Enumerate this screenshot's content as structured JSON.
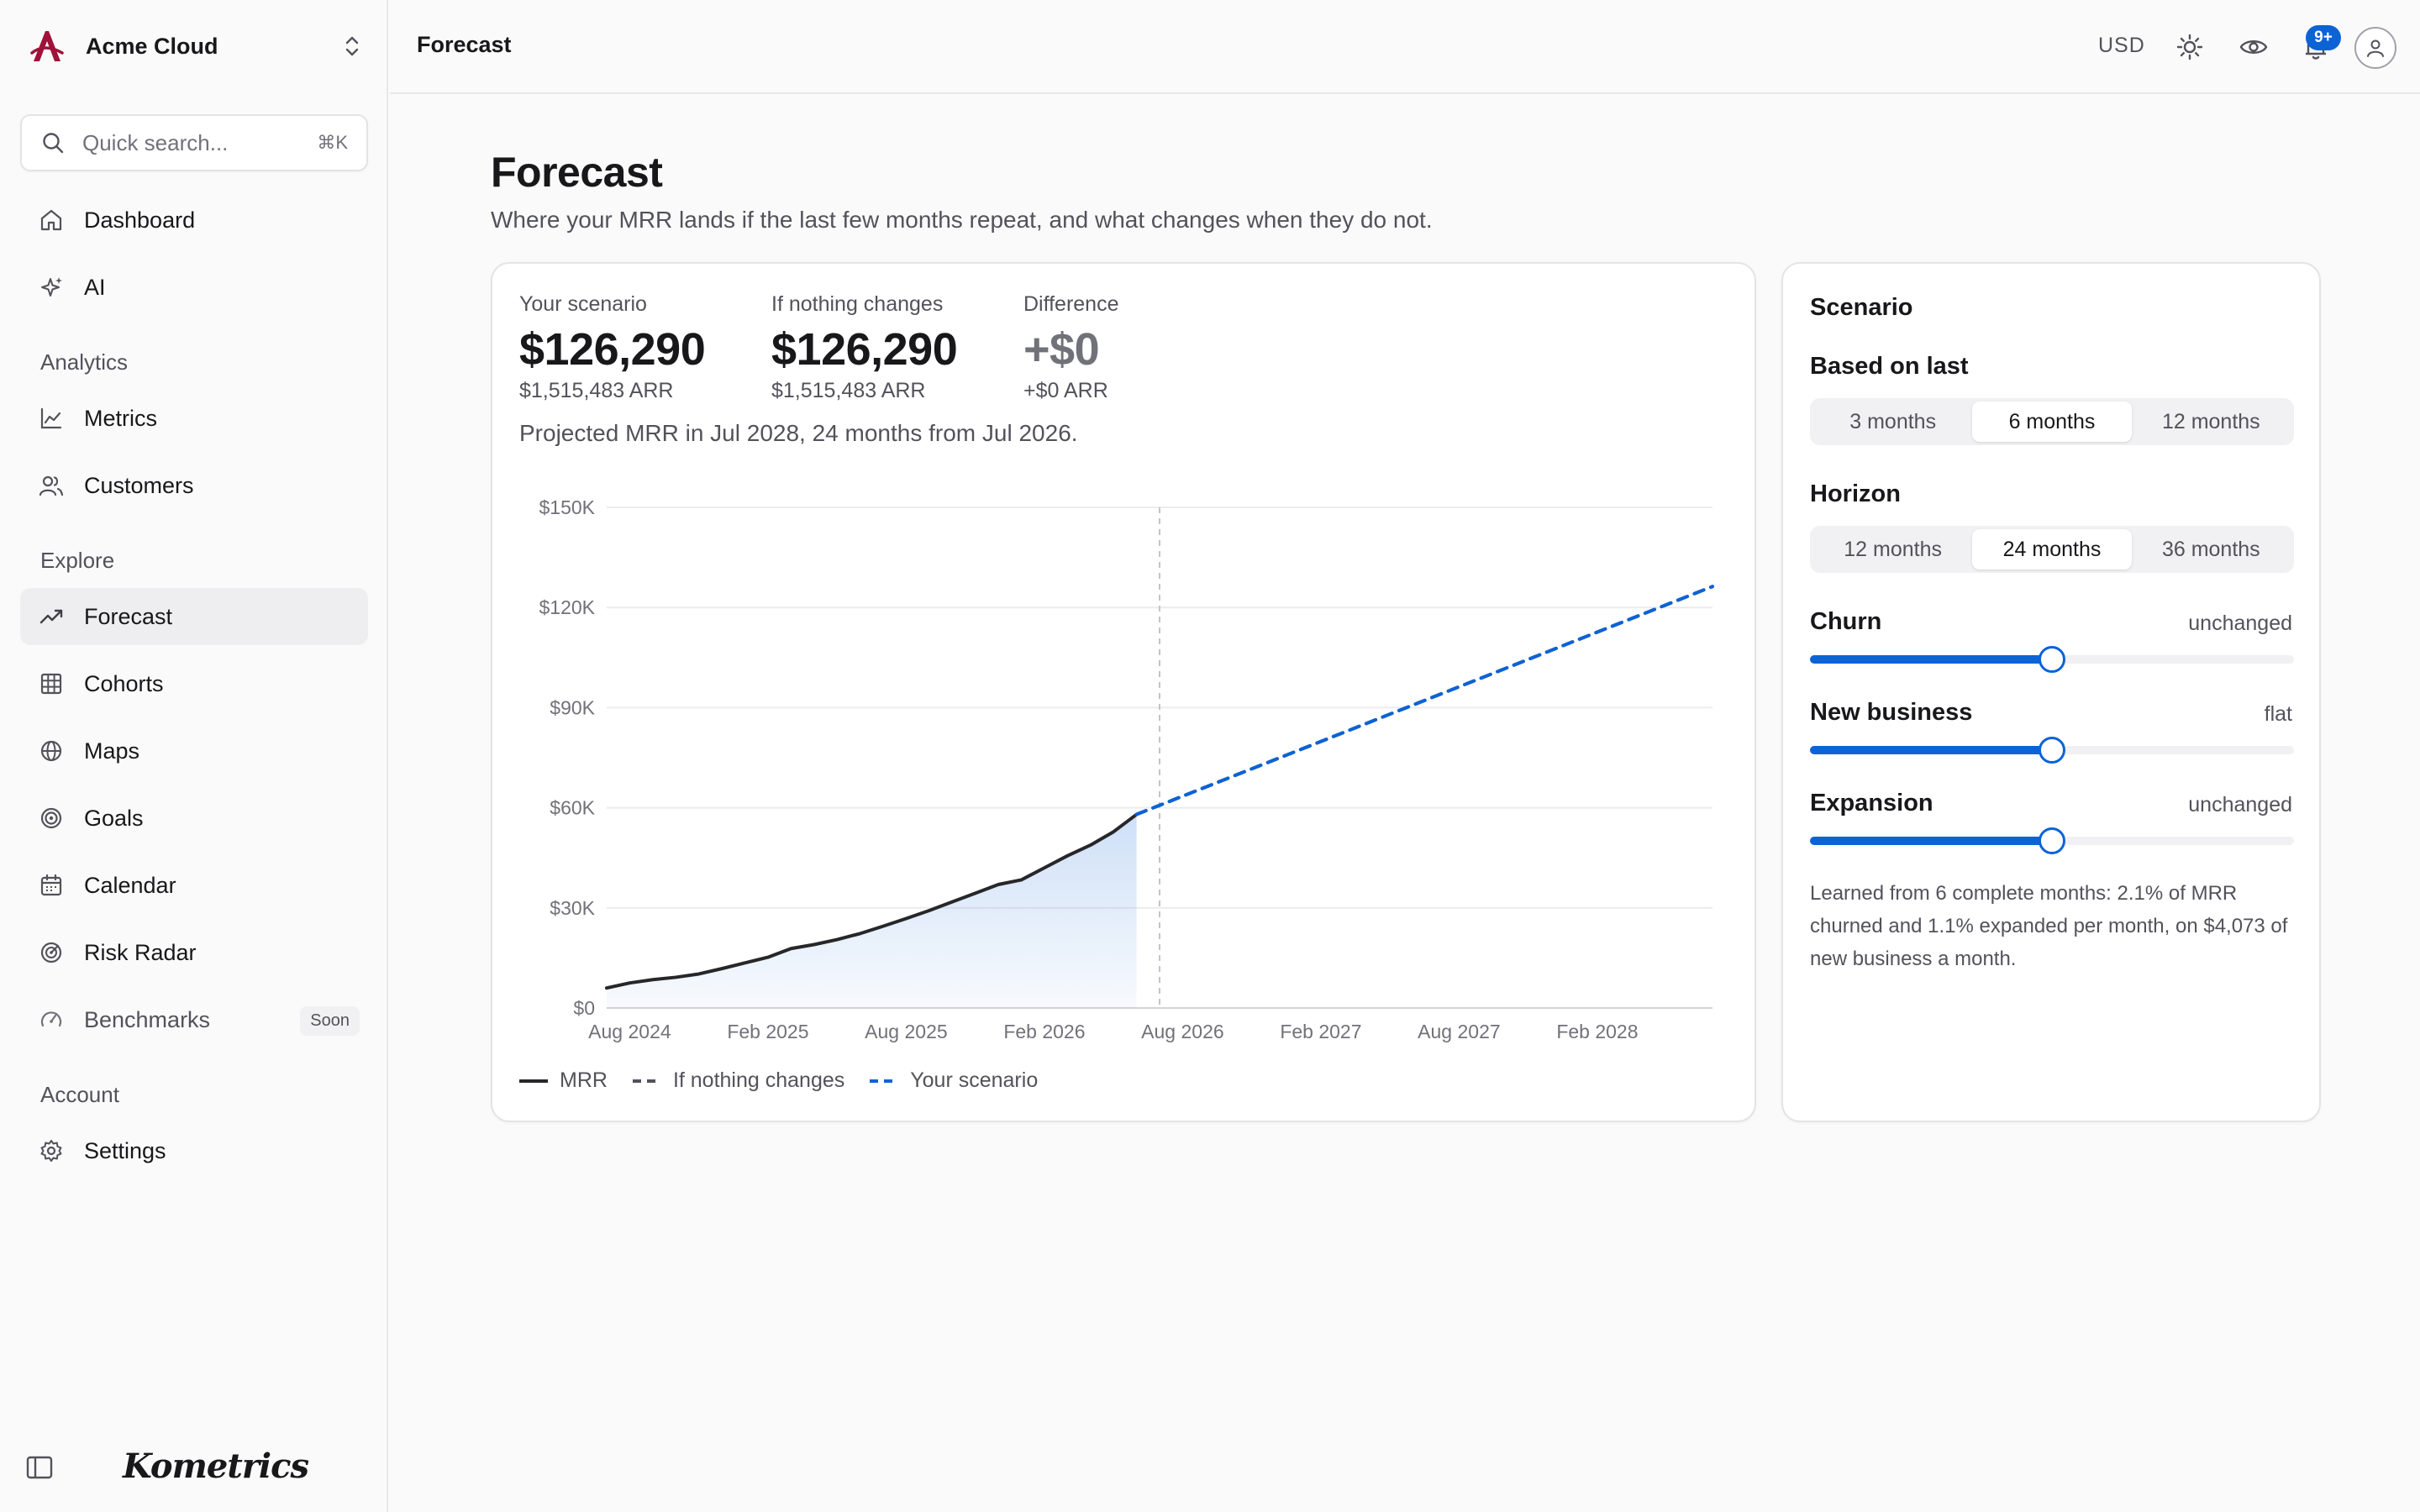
{
  "app": {
    "workspace_name": "Acme Cloud",
    "wordmark": "Kometrics"
  },
  "search": {
    "placeholder": "Quick search...",
    "shortcut": "⌘K"
  },
  "sidebar": {
    "top_items": [
      {
        "label": "Dashboard",
        "icon": "home-icon"
      },
      {
        "label": "AI",
        "icon": "sparkles-icon"
      }
    ],
    "sections": [
      {
        "title": "Analytics",
        "items": [
          {
            "label": "Metrics",
            "icon": "line-chart-icon"
          },
          {
            "label": "Customers",
            "icon": "users-icon"
          }
        ]
      },
      {
        "title": "Explore",
        "items": [
          {
            "label": "Forecast",
            "icon": "trending-up-icon",
            "active": true
          },
          {
            "label": "Cohorts",
            "icon": "grid-icon"
          },
          {
            "label": "Maps",
            "icon": "globe-icon"
          },
          {
            "label": "Goals",
            "icon": "target-icon"
          },
          {
            "label": "Calendar",
            "icon": "calendar-icon"
          },
          {
            "label": "Risk Radar",
            "icon": "radar-icon"
          },
          {
            "label": "Benchmarks",
            "icon": "gauge-icon",
            "badge": "Soon"
          }
        ]
      },
      {
        "title": "Account",
        "items": [
          {
            "label": "Settings",
            "icon": "gear-icon"
          }
        ]
      }
    ]
  },
  "topbar": {
    "title": "Forecast",
    "currency": "USD",
    "notifications_badge": "9+"
  },
  "page": {
    "title": "Forecast",
    "subtitle": "Where your MRR lands if the last few months repeat, and what changes when they do not."
  },
  "kpis": [
    {
      "label": "Your scenario",
      "value": "$126,290",
      "sub": "$1,515,483 ARR"
    },
    {
      "label": "If nothing changes",
      "value": "$126,290",
      "sub": "$1,515,483 ARR"
    },
    {
      "label": "Difference",
      "value": "+$0",
      "sub": "+$0 ARR"
    }
  ],
  "projection_note": "Projected MRR in Jul 2028, 24 months from Jul 2026.",
  "chart_data": {
    "type": "line",
    "y_ticks": [
      "$0",
      "$30K",
      "$60K",
      "$90K",
      "$120K",
      "$150K"
    ],
    "ylim": [
      0,
      150000
    ],
    "x_ticks": [
      "Aug 2024",
      "Feb 2025",
      "Aug 2025",
      "Feb 2026",
      "Aug 2026",
      "Feb 2027",
      "Aug 2027",
      "Feb 2028"
    ],
    "x_start": "2024-07",
    "x_end": "2028-07",
    "forecast_start": "2026-07",
    "grid": true,
    "legend": "bottom-left",
    "series": [
      {
        "name": "MRR",
        "style": "solid",
        "color": "#27272a",
        "points": [
          [
            "2024-07",
            6000
          ],
          [
            "2024-08",
            7500
          ],
          [
            "2024-09",
            8500
          ],
          [
            "2024-10",
            9200
          ],
          [
            "2024-11",
            10200
          ],
          [
            "2024-12",
            11800
          ],
          [
            "2025-01",
            13500
          ],
          [
            "2025-02",
            15200
          ],
          [
            "2025-03",
            17800
          ],
          [
            "2025-04",
            19000
          ],
          [
            "2025-05",
            20500
          ],
          [
            "2025-06",
            22300
          ],
          [
            "2025-07",
            24500
          ],
          [
            "2025-08",
            26800
          ],
          [
            "2025-09",
            29200
          ],
          [
            "2025-10",
            31800
          ],
          [
            "2025-11",
            34400
          ],
          [
            "2025-12",
            37000
          ],
          [
            "2026-01",
            38400
          ],
          [
            "2026-02",
            42000
          ],
          [
            "2026-03",
            45600
          ],
          [
            "2026-04",
            48800
          ],
          [
            "2026-05",
            52800
          ],
          [
            "2026-06",
            58000
          ]
        ]
      },
      {
        "name": "If nothing changes",
        "style": "dashed",
        "color": "#52525b",
        "points": [
          [
            "2026-06",
            58000
          ],
          [
            "2028-07",
            126290
          ]
        ]
      },
      {
        "name": "Your scenario",
        "style": "dashed",
        "color": "#0b63d6",
        "points": [
          [
            "2026-06",
            58000
          ],
          [
            "2028-07",
            126290
          ]
        ]
      }
    ]
  },
  "scenario": {
    "title": "Scenario",
    "based_on": {
      "label": "Based on last",
      "options": [
        "3 months",
        "6 months",
        "12 months"
      ],
      "selected": 1
    },
    "horizon": {
      "label": "Horizon",
      "options": [
        "12 months",
        "24 months",
        "36 months"
      ],
      "selected": 1
    },
    "sliders": [
      {
        "label": "Churn",
        "value_text": "unchanged",
        "level": 0.5
      },
      {
        "label": "New business",
        "value_text": "flat",
        "level": 0.5
      },
      {
        "label": "Expansion",
        "value_text": "unchanged",
        "level": 0.5
      }
    ],
    "note": "Learned from 6 complete months: 2.1% of MRR churned and 1.1% expanded per month, on $4,073 of new business a month."
  },
  "colors": {
    "accent": "#0b63d6",
    "brand": "#9f1239"
  }
}
